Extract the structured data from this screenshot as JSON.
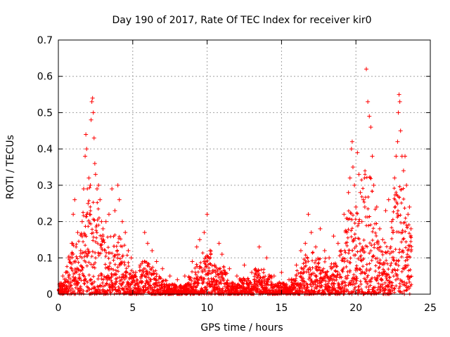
{
  "chart_data": {
    "type": "scatter",
    "title": "Day 190 of 2017, Rate Of TEC Index for receiver kir0",
    "xlabel": "GPS time / hours",
    "ylabel": "ROTI / TECUs",
    "xlim": [
      0,
      25
    ],
    "ylim": [
      0,
      0.7
    ],
    "grid": true,
    "marker": "plus",
    "xticks": [
      "0",
      "5",
      "10",
      "15",
      "20",
      "25"
    ],
    "yticks": [
      "0",
      "0.1",
      "0.2",
      "0.3",
      "0.4",
      "0.5",
      "0.6",
      "0.7"
    ],
    "colors": {
      "series": "#ff0000",
      "grid": "#a0a0a0",
      "axis": "#000000"
    },
    "series": [
      {
        "name": "ROTI",
        "points": [
          [
            0.1,
            0.03
          ],
          [
            0.3,
            0.05
          ],
          [
            0.5,
            0.06
          ],
          [
            0.7,
            0.1
          ],
          [
            0.9,
            0.14
          ],
          [
            1.0,
            0.22
          ],
          [
            1.1,
            0.26
          ],
          [
            1.3,
            0.17
          ],
          [
            1.5,
            0.12
          ],
          [
            1.6,
            0.2
          ],
          [
            1.7,
            0.29
          ],
          [
            1.8,
            0.38
          ],
          [
            1.85,
            0.44
          ],
          [
            1.9,
            0.4
          ],
          [
            2.0,
            0.25
          ],
          [
            2.05,
            0.32
          ],
          [
            2.1,
            0.22
          ],
          [
            2.15,
            0.3
          ],
          [
            2.2,
            0.48
          ],
          [
            2.25,
            0.53
          ],
          [
            2.3,
            0.54
          ],
          [
            2.35,
            0.5
          ],
          [
            2.4,
            0.43
          ],
          [
            2.45,
            0.36
          ],
          [
            2.5,
            0.33
          ],
          [
            2.6,
            0.29
          ],
          [
            2.7,
            0.3
          ],
          [
            2.8,
            0.26
          ],
          [
            2.9,
            0.2
          ],
          [
            3.0,
            0.18
          ],
          [
            3.2,
            0.2
          ],
          [
            3.4,
            0.22
          ],
          [
            3.6,
            0.29
          ],
          [
            3.8,
            0.23
          ],
          [
            4.0,
            0.3
          ],
          [
            4.1,
            0.26
          ],
          [
            4.3,
            0.2
          ],
          [
            4.5,
            0.17
          ],
          [
            4.7,
            0.12
          ],
          [
            4.9,
            0.1
          ],
          [
            5.2,
            0.06
          ],
          [
            5.5,
            0.08
          ],
          [
            5.8,
            0.17
          ],
          [
            6.0,
            0.14
          ],
          [
            6.3,
            0.12
          ],
          [
            6.6,
            0.09
          ],
          [
            7.0,
            0.07
          ],
          [
            7.5,
            0.05
          ],
          [
            8.0,
            0.04
          ],
          [
            8.5,
            0.05
          ],
          [
            9.0,
            0.09
          ],
          [
            9.3,
            0.13
          ],
          [
            9.5,
            0.15
          ],
          [
            9.8,
            0.17
          ],
          [
            10.0,
            0.22
          ],
          [
            10.2,
            0.12
          ],
          [
            10.5,
            0.08
          ],
          [
            10.8,
            0.14
          ],
          [
            11.0,
            0.11
          ],
          [
            11.5,
            0.07
          ],
          [
            12.0,
            0.05
          ],
          [
            12.5,
            0.08
          ],
          [
            13.0,
            0.06
          ],
          [
            13.5,
            0.13
          ],
          [
            14.0,
            0.1
          ],
          [
            14.5,
            0.05
          ],
          [
            15.0,
            0.06
          ],
          [
            15.5,
            0.04
          ],
          [
            16.0,
            0.08
          ],
          [
            16.3,
            0.12
          ],
          [
            16.6,
            0.14
          ],
          [
            16.8,
            0.22
          ],
          [
            17.0,
            0.17
          ],
          [
            17.3,
            0.13
          ],
          [
            17.6,
            0.18
          ],
          [
            17.9,
            0.12
          ],
          [
            18.2,
            0.1
          ],
          [
            18.5,
            0.16
          ],
          [
            18.8,
            0.14
          ],
          [
            19.0,
            0.12
          ],
          [
            19.2,
            0.22
          ],
          [
            19.4,
            0.17
          ],
          [
            19.5,
            0.28
          ],
          [
            19.6,
            0.32
          ],
          [
            19.7,
            0.4
          ],
          [
            19.75,
            0.42
          ],
          [
            19.8,
            0.35
          ],
          [
            19.9,
            0.3
          ],
          [
            20.0,
            0.24
          ],
          [
            20.1,
            0.39
          ],
          [
            20.2,
            0.33
          ],
          [
            20.3,
            0.28
          ],
          [
            20.4,
            0.2
          ],
          [
            20.5,
            0.26
          ],
          [
            20.6,
            0.24
          ],
          [
            20.7,
            0.62
          ],
          [
            20.8,
            0.53
          ],
          [
            20.9,
            0.49
          ],
          [
            21.0,
            0.46
          ],
          [
            21.1,
            0.38
          ],
          [
            21.2,
            0.3
          ],
          [
            21.4,
            0.24
          ],
          [
            21.6,
            0.18
          ],
          [
            21.8,
            0.15
          ],
          [
            22.0,
            0.23
          ],
          [
            22.2,
            0.26
          ],
          [
            22.4,
            0.2
          ],
          [
            22.5,
            0.17
          ],
          [
            22.6,
            0.32
          ],
          [
            22.7,
            0.38
          ],
          [
            22.8,
            0.42
          ],
          [
            22.85,
            0.5
          ],
          [
            22.9,
            0.55
          ],
          [
            22.95,
            0.53
          ],
          [
            23.0,
            0.45
          ],
          [
            23.1,
            0.38
          ],
          [
            23.2,
            0.34
          ],
          [
            23.3,
            0.38
          ],
          [
            23.4,
            0.3
          ],
          [
            23.5,
            0.22
          ],
          [
            23.6,
            0.24
          ],
          [
            23.7,
            0.18
          ]
        ]
      }
    ]
  }
}
